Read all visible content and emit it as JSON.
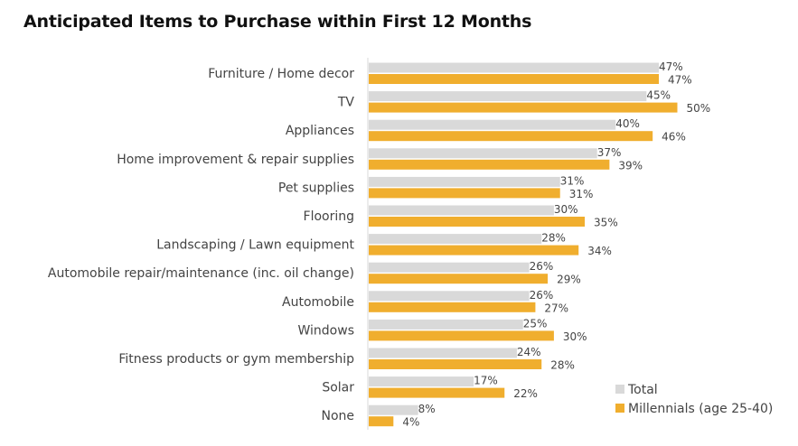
{
  "chart_data": {
    "type": "bar",
    "orientation": "horizontal",
    "title": "Anticipated Items to Purchase within First 12 Months",
    "categories": [
      "Furniture / Home decor",
      "TV",
      "Appliances",
      "Home improvement & repair supplies",
      "Pet supplies",
      "Flooring",
      "Landscaping / Lawn equipment",
      "Automobile repair/maintenance (inc. oil change)",
      "Automobile",
      "Windows",
      "Fitness products or gym membership",
      "Solar",
      "None"
    ],
    "series": [
      {
        "name": "Total",
        "color": "#d9d9d9",
        "values": [
          47,
          45,
          40,
          37,
          31,
          30,
          28,
          26,
          26,
          25,
          24,
          17,
          8
        ],
        "labels": [
          "47%",
          "45%",
          "40%",
          "37%",
          "31%",
          "30%",
          "28%",
          "26%",
          "26%",
          "25%",
          "24%",
          "17%",
          "8%"
        ]
      },
      {
        "name": "Millennials (age 25-40)",
        "color": "#f0ae2e",
        "values": [
          47,
          50,
          46,
          39,
          31,
          35,
          34,
          29,
          27,
          30,
          28,
          22,
          4
        ],
        "labels": [
          "47%",
          "50%",
          "46%",
          "39%",
          "31%",
          "35%",
          "34%",
          "29%",
          "27%",
          "30%",
          "28%",
          "22%",
          "4%"
        ]
      }
    ],
    "xlim": [
      0,
      100
    ],
    "grid": false,
    "legend_position": "bottom-right"
  }
}
